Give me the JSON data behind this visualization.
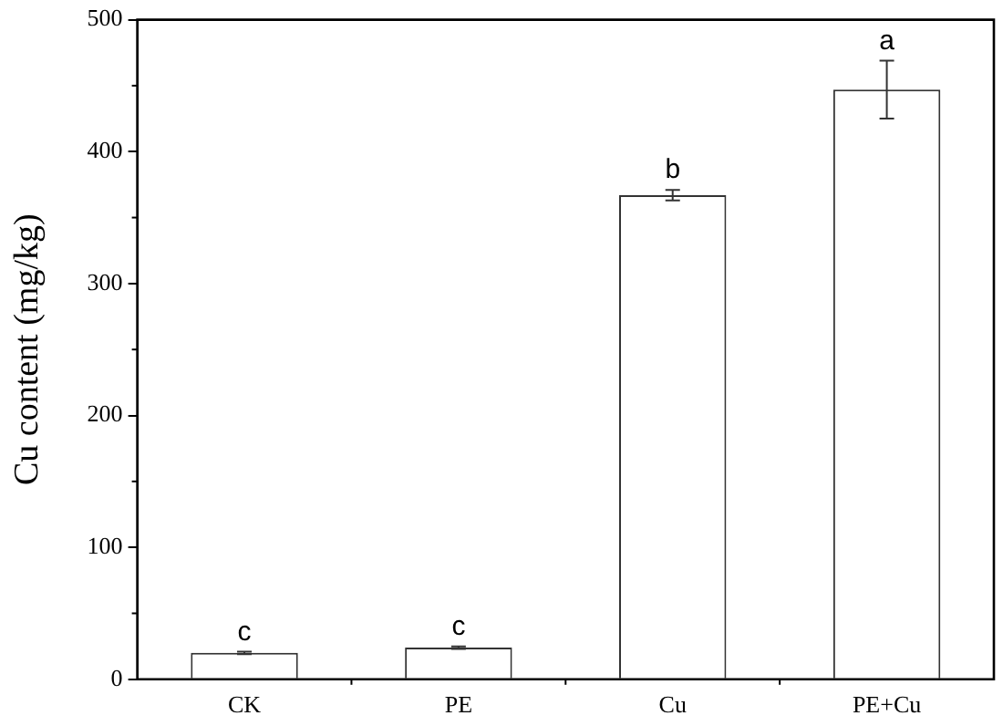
{
  "chart_data": {
    "type": "bar",
    "ylabel": "Cu content (mg/kg)",
    "categories": [
      "CK",
      "PE",
      "Cu",
      "PE+Cu"
    ],
    "values": [
      20,
      24,
      367,
      447
    ],
    "errors": [
      1,
      1,
      4,
      22
    ],
    "color": "#ffffff",
    "ylim": [
      0,
      500
    ],
    "yticks": [
      0,
      100,
      200,
      300,
      400,
      500
    ],
    "grid": false,
    "legend": false,
    "annotations": [
      {
        "text": "c",
        "x": "CK",
        "y": 21
      },
      {
        "text": "c",
        "x": "PE",
        "y": 25
      },
      {
        "text": "b",
        "x": "Cu",
        "y": 371
      },
      {
        "text": "a",
        "x": "PE+Cu",
        "y": 469
      }
    ]
  }
}
